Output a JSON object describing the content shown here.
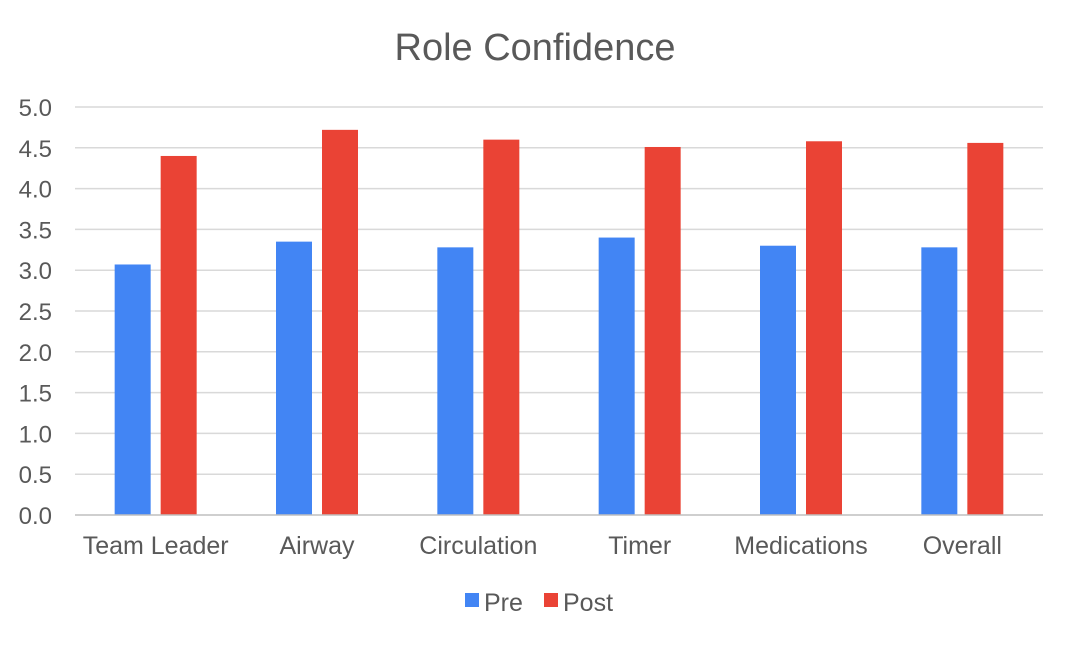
{
  "chart_data": {
    "type": "bar",
    "title": "Role Confidence",
    "xlabel": "",
    "ylabel": "",
    "categories": [
      "Team Leader",
      "Airway",
      "Circulation",
      "Timer",
      "Medications",
      "Overall"
    ],
    "series": [
      {
        "name": "Pre",
        "color": "#4285f4",
        "values": [
          3.07,
          3.35,
          3.28,
          3.4,
          3.3,
          3.28
        ]
      },
      {
        "name": "Post",
        "color": "#ea4335",
        "values": [
          4.4,
          4.72,
          4.6,
          4.51,
          4.58,
          4.56
        ]
      }
    ],
    "ylim": [
      0,
      5
    ],
    "yticks": [
      "0.0",
      "0.5",
      "1.0",
      "1.5",
      "2.0",
      "2.5",
      "3.0",
      "3.5",
      "4.0",
      "4.5",
      "5.0"
    ],
    "grid": true,
    "legend_position": "bottom"
  }
}
